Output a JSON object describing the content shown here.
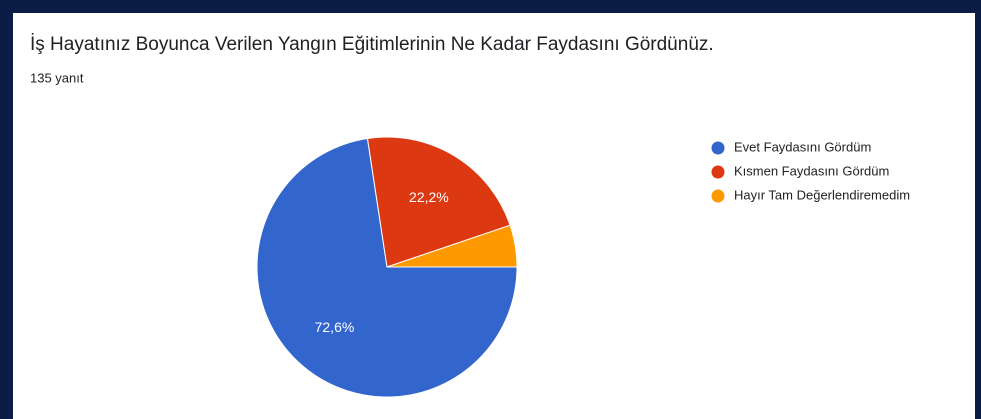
{
  "chart_data": {
    "type": "pie",
    "title": "İş Hayatınız Boyunca Verilen Yangın Eğitimlerinin Ne Kadar Faydasını Gördünüz.",
    "subtitle": "135 yanıt",
    "categories": [
      "Evet Faydasını Gördüm",
      "Kısmen Faydasını Gördüm",
      "Hayır Tam Değerlendiremedim"
    ],
    "values": [
      72.6,
      22.2,
      5.2
    ],
    "value_labels": [
      "72,6%",
      "22,2%",
      null
    ],
    "colors": [
      "#3366cc",
      "#dc3912",
      "#ff9900"
    ],
    "legend": "right"
  }
}
